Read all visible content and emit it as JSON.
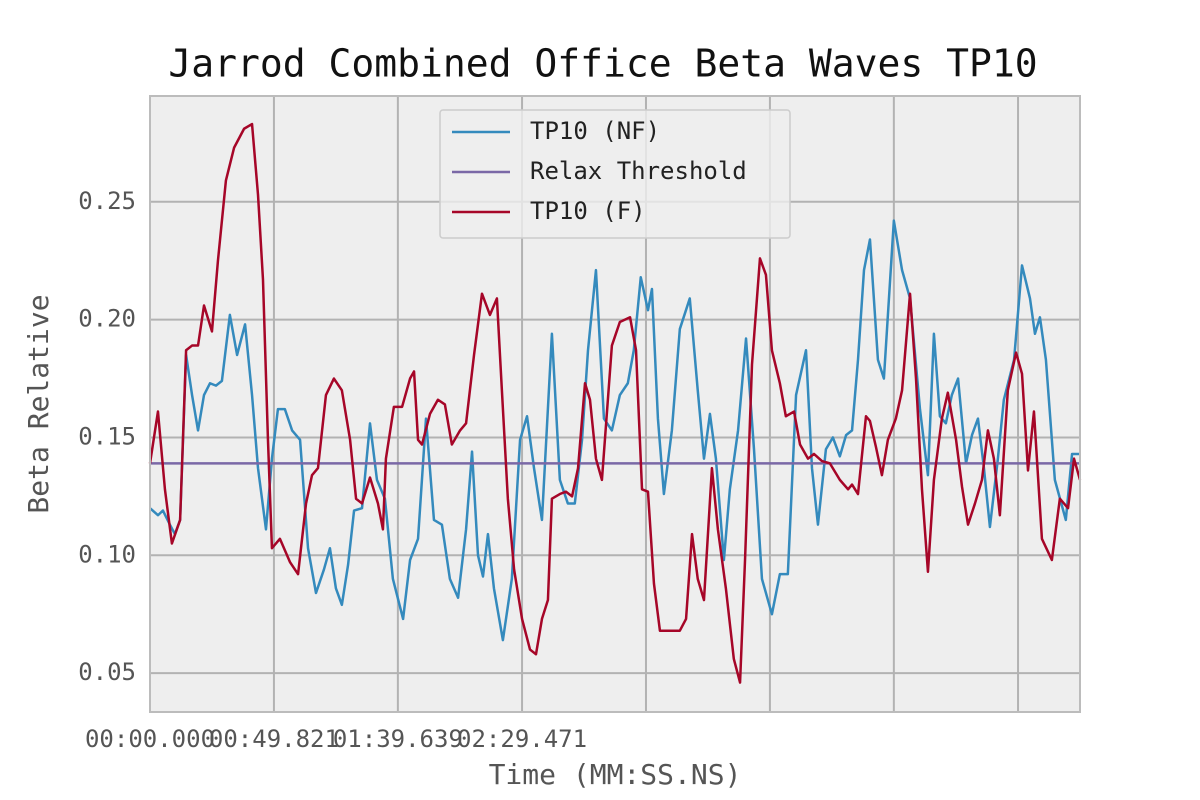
{
  "chart_data": {
    "type": "line",
    "title": "Jarrod Combined Office Beta Waves TP10",
    "xlabel": "Time (MM:SS.NS)",
    "ylabel": "Beta Relative",
    "xlim": [
      0,
      373.7
    ],
    "ylim": [
      0.0335,
      0.2949
    ],
    "xticks": [
      {
        "value": 0,
        "label": "00:00.000"
      },
      {
        "value": 49.8,
        "label": "00:49.821"
      },
      {
        "value": 99.6,
        "label": "01:39.639"
      },
      {
        "value": 149.5,
        "label": "02:29.471"
      },
      {
        "value": 199.3,
        "label": null
      },
      {
        "value": 249.1,
        "label": null
      },
      {
        "value": 298.9,
        "label": null
      },
      {
        "value": 348.8,
        "label": null
      }
    ],
    "yticks": [
      0.05,
      {
        "value": 0.1,
        "label": "0.10"
      },
      0.15,
      {
        "value": 0.2,
        "label": "0.20"
      },
      0.25
    ],
    "grid": true,
    "legend": "upper center",
    "series": [
      {
        "name": "TP10 (NF)",
        "color": "#348abd",
        "x": [
          0,
          3.2,
          5.2,
          8.0,
          10.0,
          12.1,
          14.5,
          16.9,
          19.3,
          21.7,
          24.1,
          26.5,
          28.9,
          32.1,
          35.0,
          38.2,
          41.0,
          43.4,
          46.6,
          49.0,
          51.4,
          54.2,
          57.1,
          60.3,
          63.5,
          66.7,
          69.9,
          72.3,
          74.7,
          77.1,
          79.6,
          82.0,
          85.2,
          88.4,
          91.2,
          94.4,
          97.6,
          101.7,
          104.5,
          107.7,
          110.9,
          114.1,
          117.3,
          120.5,
          123.8,
          127.0,
          129.4,
          131.8,
          133.8,
          135.8,
          138.2,
          141.8,
          145.4,
          148.7,
          151.5,
          154.3,
          157.5,
          161.5,
          164.7,
          167.9,
          170.7,
          173.6,
          176.0,
          179.2,
          182.4,
          185.6,
          188.8,
          192.0,
          194.4,
          197.2,
          200.1,
          201.7,
          204.1,
          206.5,
          209.7,
          212.9,
          216.9,
          220.1,
          222.6,
          225.0,
          227.4,
          230.6,
          233.0,
          236.3,
          239.5,
          242.7,
          245.9,
          249.9,
          253.1,
          256.3,
          259.6,
          263.6,
          266.0,
          268.4,
          271.6,
          274.4,
          277.2,
          279.7,
          282.1,
          284.5,
          286.9,
          289.3,
          292.5,
          294.9,
          298.9,
          302.2,
          305.4,
          309.4,
          312.6,
          315.0,
          317.4,
          319.8,
          322.2,
          324.7,
          327.9,
          330.3,
          332.7,
          335.1,
          337.5,
          340.7,
          343.1,
          347.2,
          350.4,
          353.6,
          355.6,
          357.6,
          360.0,
          363.6,
          368.0,
          370.5,
          373.7
        ],
        "values": [
          0.12,
          0.117,
          0.119,
          0.113,
          0.109,
          0.115,
          0.185,
          0.168,
          0.153,
          0.168,
          0.173,
          0.172,
          0.174,
          0.202,
          0.185,
          0.198,
          0.168,
          0.137,
          0.111,
          0.141,
          0.162,
          0.162,
          0.153,
          0.149,
          0.103,
          0.084,
          0.094,
          0.103,
          0.086,
          0.079,
          0.096,
          0.119,
          0.12,
          0.156,
          0.132,
          0.124,
          0.09,
          0.073,
          0.098,
          0.107,
          0.158,
          0.115,
          0.113,
          0.09,
          0.082,
          0.111,
          0.144,
          0.1,
          0.091,
          0.109,
          0.086,
          0.064,
          0.09,
          0.149,
          0.159,
          0.137,
          0.115,
          0.194,
          0.132,
          0.122,
          0.122,
          0.149,
          0.187,
          0.221,
          0.158,
          0.153,
          0.168,
          0.173,
          0.187,
          0.218,
          0.204,
          0.213,
          0.158,
          0.126,
          0.153,
          0.196,
          0.209,
          0.17,
          0.141,
          0.16,
          0.141,
          0.098,
          0.128,
          0.153,
          0.192,
          0.145,
          0.09,
          0.075,
          0.092,
          0.092,
          0.168,
          0.187,
          0.137,
          0.113,
          0.145,
          0.15,
          0.142,
          0.151,
          0.153,
          0.183,
          0.221,
          0.234,
          0.183,
          0.175,
          0.242,
          0.221,
          0.209,
          0.162,
          0.134,
          0.194,
          0.159,
          0.156,
          0.168,
          0.175,
          0.139,
          0.151,
          0.158,
          0.137,
          0.112,
          0.141,
          0.166,
          0.183,
          0.223,
          0.209,
          0.194,
          0.201,
          0.183,
          0.132,
          0.115,
          0.143,
          0.143
        ]
      },
      {
        "name": "Relax Threshold",
        "color": "#7a68a6",
        "x": [
          0,
          373.7
        ],
        "values": [
          0.139,
          0.139
        ]
      },
      {
        "name": "TP10 (F)",
        "color": "#a60628",
        "x": [
          0,
          3.2,
          6.0,
          8.8,
          12.1,
          14.5,
          16.9,
          19.3,
          21.7,
          24.9,
          27.3,
          30.5,
          33.8,
          37.8,
          41.0,
          43.4,
          45.4,
          47.4,
          49.0,
          52.2,
          56.3,
          59.5,
          62.7,
          65.1,
          67.5,
          70.7,
          73.9,
          77.1,
          80.4,
          82.8,
          85.2,
          88.4,
          91.6,
          93.6,
          94.8,
          98.0,
          101.3,
          104.5,
          106.1,
          107.7,
          109.3,
          112.5,
          115.7,
          118.5,
          121.3,
          124.6,
          127.0,
          130.2,
          133.4,
          136.6,
          139.4,
          141.4,
          143.8,
          146.3,
          149.5,
          152.7,
          155.1,
          157.5,
          159.9,
          161.5,
          164.7,
          167.1,
          169.6,
          172.0,
          174.8,
          176.8,
          179.2,
          181.6,
          185.6,
          188.8,
          192.9,
          195.3,
          197.7,
          200.1,
          202.5,
          204.9,
          209.7,
          212.9,
          215.4,
          217.8,
          220.1,
          222.6,
          225.8,
          228.2,
          231.4,
          234.6,
          237.1,
          239.1,
          241.9,
          245.1,
          247.5,
          249.9,
          253.1,
          255.5,
          258.8,
          261.2,
          264.4,
          266.8,
          270.0,
          273.2,
          277.2,
          280.5,
          282.1,
          284.5,
          287.7,
          289.3,
          291.7,
          294.1,
          296.5,
          299.7,
          302.2,
          305.4,
          307.8,
          310.2,
          312.6,
          315.0,
          318.2,
          320.6,
          323.9,
          326.3,
          328.7,
          331.5,
          334.3,
          336.7,
          339.1,
          341.5,
          344.7,
          348.0,
          350.4,
          352.8,
          355.2,
          358.4,
          362.4,
          365.6,
          368.9,
          371.3,
          373.7
        ],
        "values": [
          0.139,
          0.161,
          0.128,
          0.105,
          0.115,
          0.187,
          0.189,
          0.189,
          0.206,
          0.195,
          0.225,
          0.259,
          0.273,
          0.281,
          0.283,
          0.253,
          0.217,
          0.149,
          0.103,
          0.107,
          0.097,
          0.092,
          0.122,
          0.134,
          0.137,
          0.168,
          0.175,
          0.17,
          0.149,
          0.124,
          0.122,
          0.133,
          0.122,
          0.111,
          0.141,
          0.163,
          0.163,
          0.175,
          0.178,
          0.149,
          0.147,
          0.16,
          0.166,
          0.164,
          0.147,
          0.153,
          0.156,
          0.185,
          0.211,
          0.202,
          0.209,
          0.17,
          0.124,
          0.094,
          0.073,
          0.06,
          0.058,
          0.073,
          0.081,
          0.124,
          0.126,
          0.127,
          0.125,
          0.137,
          0.173,
          0.166,
          0.141,
          0.132,
          0.189,
          0.199,
          0.201,
          0.187,
          0.128,
          0.127,
          0.088,
          0.068,
          0.068,
          0.068,
          0.073,
          0.109,
          0.09,
          0.081,
          0.137,
          0.111,
          0.086,
          0.056,
          0.046,
          0.098,
          0.181,
          0.226,
          0.219,
          0.187,
          0.173,
          0.159,
          0.161,
          0.147,
          0.141,
          0.143,
          0.14,
          0.139,
          0.132,
          0.128,
          0.13,
          0.126,
          0.159,
          0.157,
          0.146,
          0.134,
          0.149,
          0.158,
          0.17,
          0.211,
          0.175,
          0.128,
          0.093,
          0.132,
          0.158,
          0.169,
          0.149,
          0.129,
          0.113,
          0.122,
          0.132,
          0.153,
          0.141,
          0.117,
          0.17,
          0.186,
          0.177,
          0.136,
          0.161,
          0.107,
          0.098,
          0.124,
          0.12,
          0.141,
          0.132
        ]
      }
    ]
  }
}
